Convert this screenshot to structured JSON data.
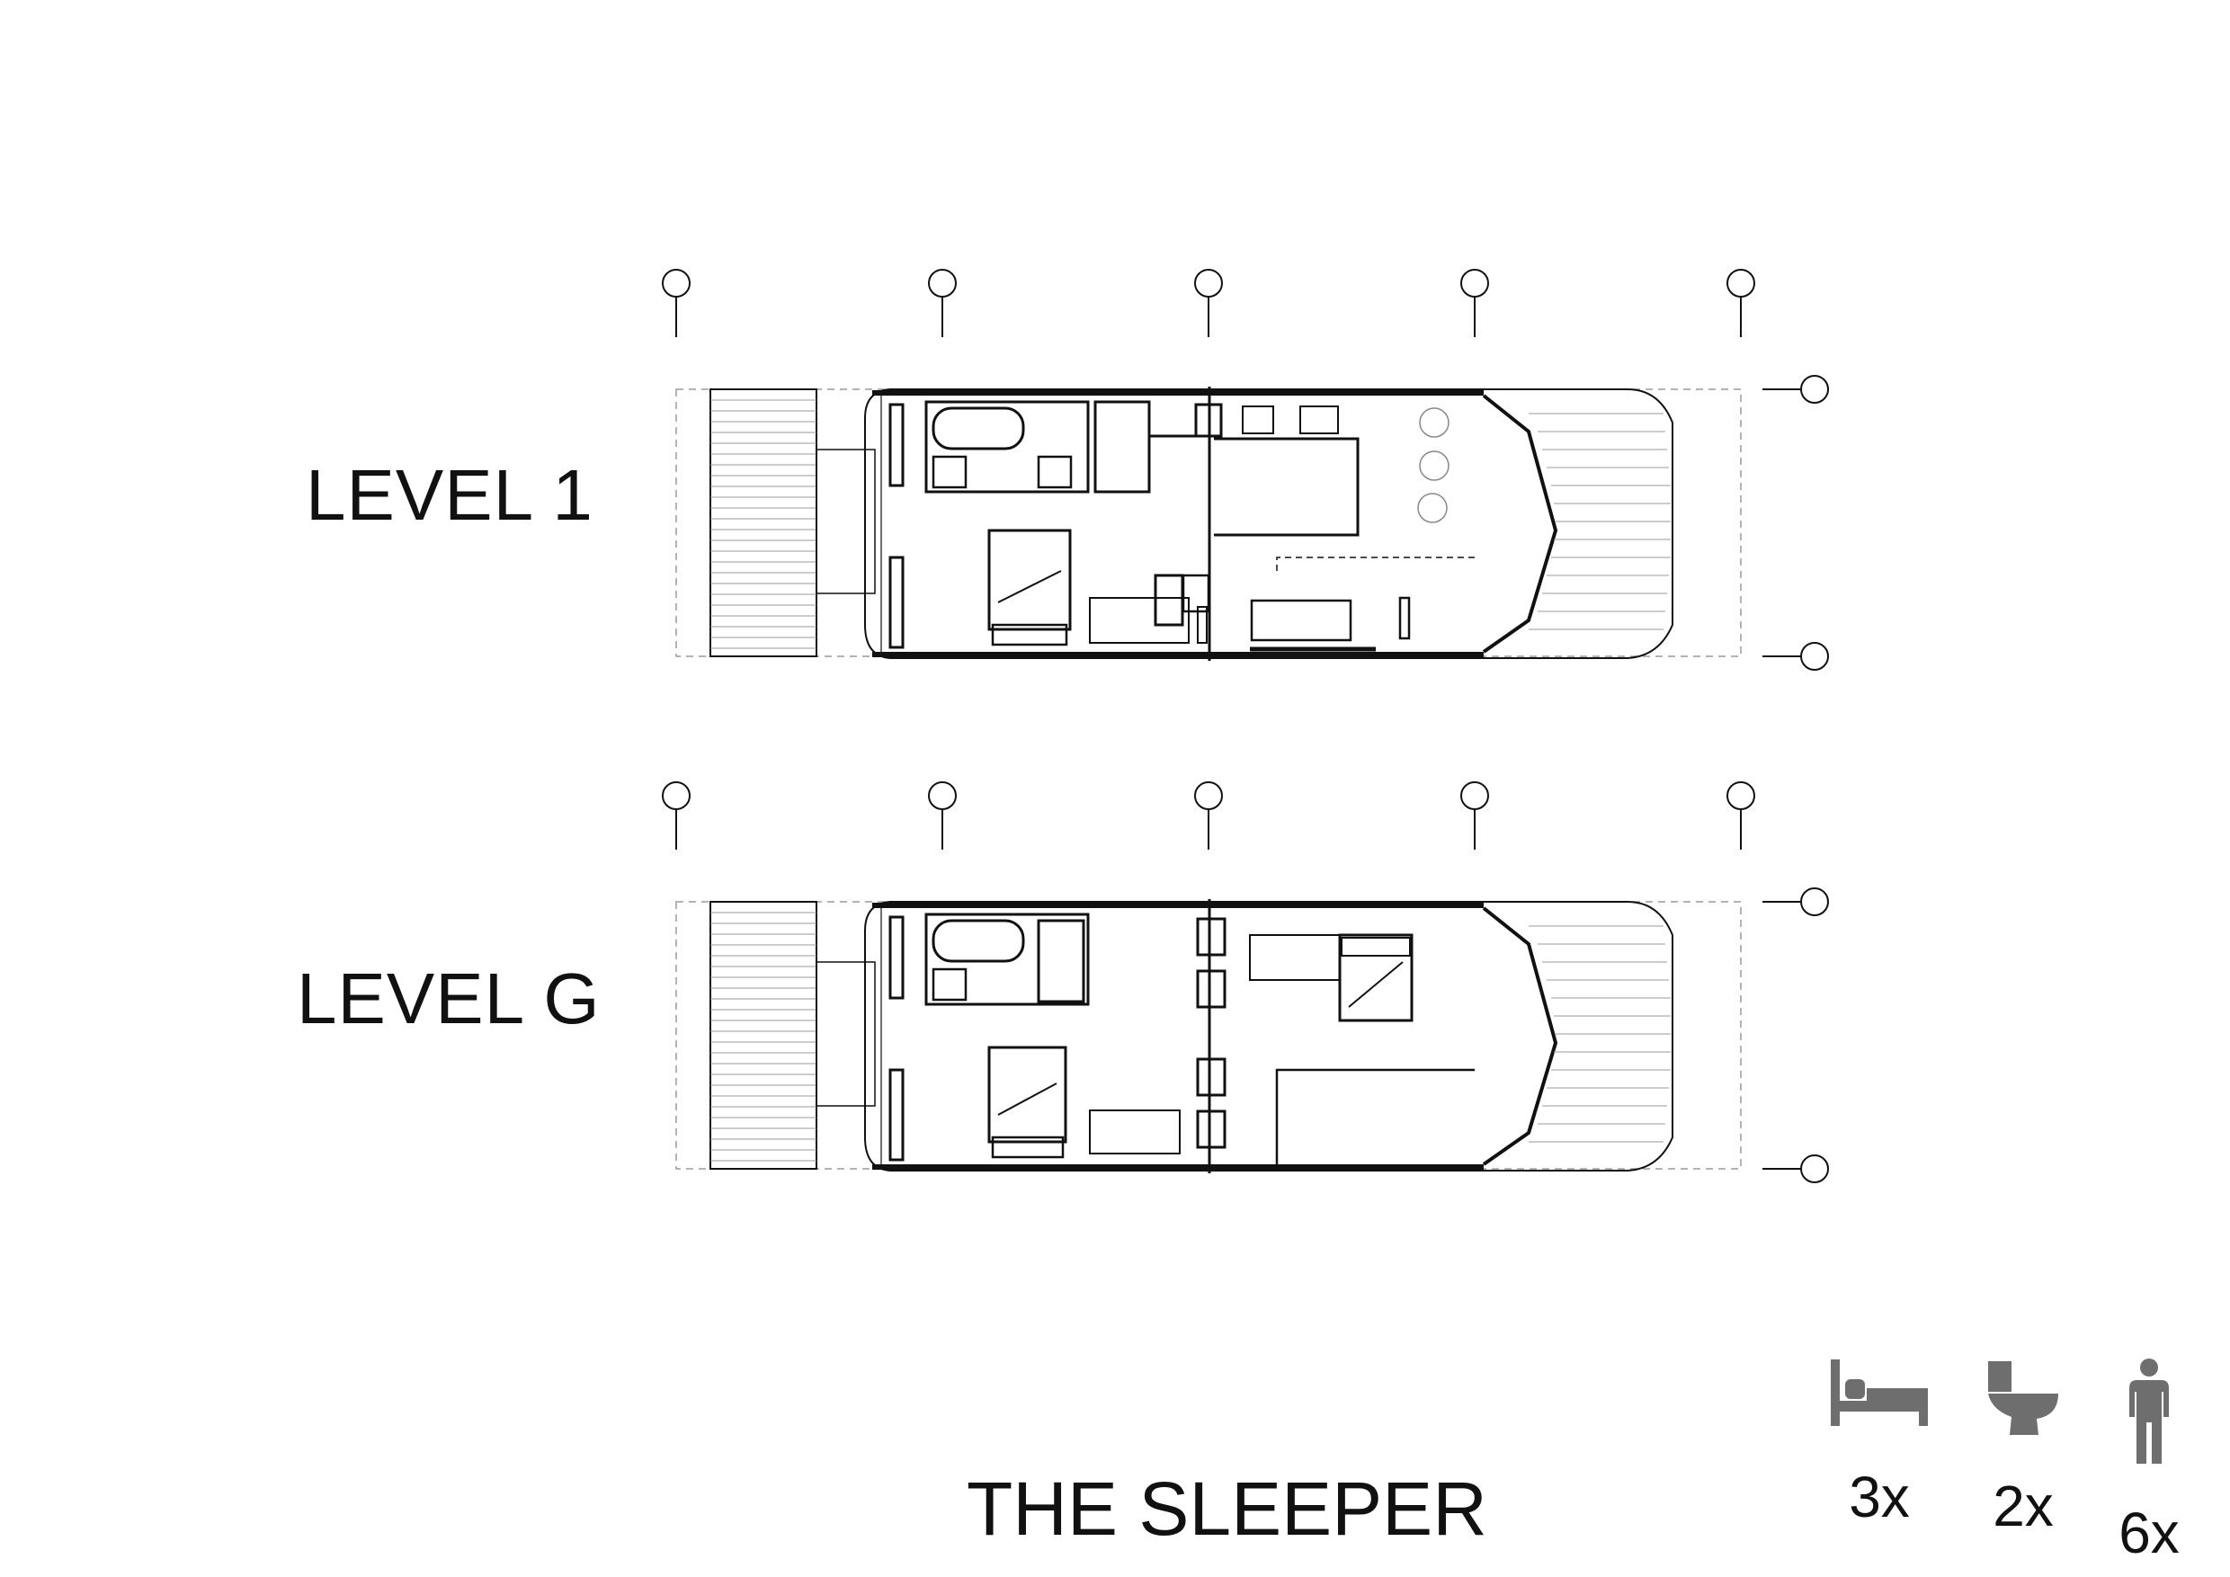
{
  "levels": [
    {
      "id": "level-1",
      "label": "LEVEL 1"
    },
    {
      "id": "level-g",
      "label": "LEVEL G"
    }
  ],
  "title": "THE SLEEPER",
  "stats": {
    "bedrooms": {
      "icon": "bed-icon",
      "count": "3x"
    },
    "toilets": {
      "icon": "toilet-icon",
      "count": "2x"
    },
    "occupants": {
      "icon": "person-icon",
      "count": "6x"
    }
  },
  "colors": {
    "ink": "#111111",
    "icon_gray": "#6e6e6e",
    "grid_gray": "#9a9a9a"
  }
}
